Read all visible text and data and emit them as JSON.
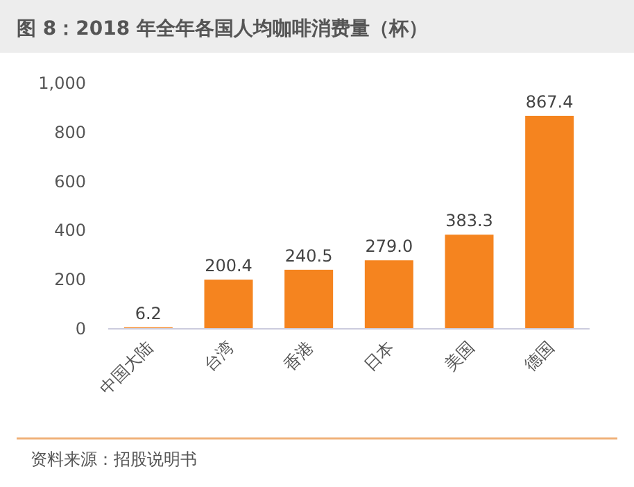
{
  "chart_data": {
    "type": "bar",
    "title": "图 8：2018 年全年各国人均咖啡消费量（杯）",
    "categories": [
      "中国大陆",
      "台湾",
      "香港",
      "日本",
      "美国",
      "德国"
    ],
    "values": [
      6.2,
      200.4,
      240.5,
      279.0,
      383.3,
      867.4
    ],
    "color": "#f5841f",
    "ylim": [
      0,
      1000
    ],
    "yticks": [
      0,
      200,
      400,
      600,
      800,
      {
        "value": 1000,
        "label": "1,000"
      }
    ],
    "value_labels": [
      "6.2",
      "200.4",
      "240.5",
      "279.0",
      "383.3",
      "867.4"
    ],
    "annotations": [
      "资料来源：招股说明书"
    ]
  }
}
